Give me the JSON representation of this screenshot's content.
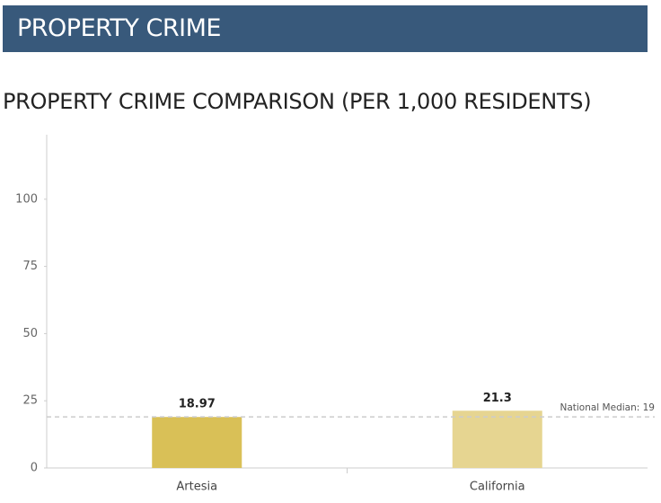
{
  "header": "PROPERTY CRIME",
  "chart_data": {
    "type": "bar",
    "title": "PROPERTY CRIME COMPARISON (PER 1,000 RESIDENTS)",
    "categories": [
      "Artesia",
      "California"
    ],
    "values": [
      18.97,
      21.3
    ],
    "colors": [
      "#d9c057",
      "#e6d591"
    ],
    "ylim": [
      0,
      124
    ],
    "yticks": [
      0,
      25,
      50,
      75,
      100
    ],
    "reference_line": {
      "value": 19,
      "label": "National Median: 19"
    }
  }
}
